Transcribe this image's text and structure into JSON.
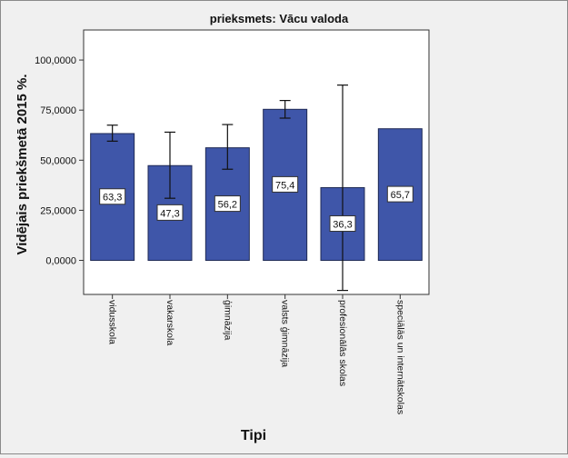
{
  "chart_data": {
    "type": "bar",
    "title": "prieksmets: Vācu valoda",
    "xlabel": "Tipi",
    "ylabel": "Vidējais priekšmetā 2015 %.",
    "categories": [
      "vidusskola",
      "vakarskola",
      "ģimnāzija",
      "valsts ģimnāzija",
      "profesionālās skolas",
      "speciālās un internātskolas"
    ],
    "values": [
      63.3,
      47.3,
      56.2,
      75.4,
      36.3,
      65.7
    ],
    "value_labels": [
      "63,3",
      "47,3",
      "56,2",
      "75,4",
      "36,3",
      "65,7"
    ],
    "error_low": [
      59.5,
      31.0,
      45.5,
      71.0,
      -15.0,
      null
    ],
    "error_high": [
      67.5,
      64.0,
      67.8,
      79.8,
      87.5,
      null
    ],
    "ylim": [
      -17,
      115
    ],
    "yticks": [
      0,
      25,
      50,
      75,
      100
    ],
    "ytick_labels": [
      "0,0000",
      "25,0000",
      "50,0000",
      "75,0000",
      "100,0000"
    ],
    "grid": false,
    "bar_color": "#3f56a9",
    "bar_stroke": "#1f2a55",
    "plot_background": "#ffffff",
    "page_background": "#f0f0f0"
  }
}
